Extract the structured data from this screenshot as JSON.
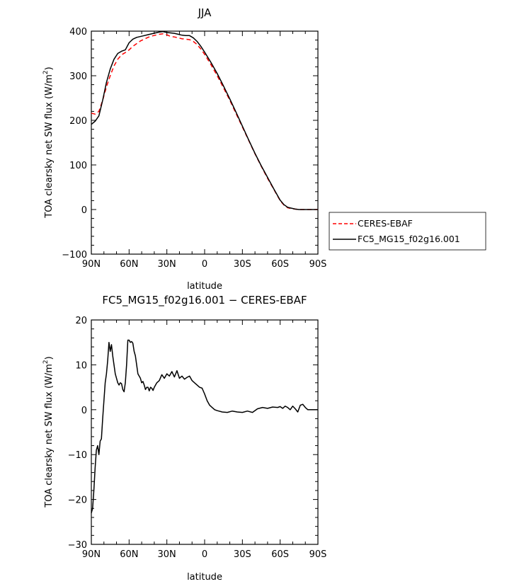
{
  "chart_data": [
    {
      "type": "line",
      "title": "JJA",
      "xlabel": "latitude",
      "ylabel": "TOA clearsky net SW flux (W/m²)",
      "ylabel_parts": [
        "TOA clearsky net SW flux (W/m",
        "2",
        ")"
      ],
      "xlim": [
        90,
        -90
      ],
      "ylim": [
        -100,
        400
      ],
      "x_ticks": [
        90,
        60,
        30,
        0,
        -30,
        -60,
        -90
      ],
      "x_tick_labels": [
        "90N",
        "60N",
        "30N",
        "0",
        "30S",
        "60S",
        "90S"
      ],
      "y_ticks": [
        -100,
        0,
        100,
        200,
        300,
        400
      ],
      "y_tick_labels": [
        "−100",
        "0",
        "100",
        "200",
        "300",
        "400"
      ],
      "legend_position": "right",
      "series": [
        {
          "name": "CERES-EBAF",
          "color": "#ff0000",
          "dashed": true,
          "x": [
            90,
            87,
            84,
            81,
            78,
            75,
            72,
            69,
            66,
            63,
            60,
            57,
            54,
            51,
            48,
            45,
            42,
            39,
            36,
            33,
            30,
            27,
            24,
            21,
            18,
            15,
            12,
            9,
            6,
            3,
            0,
            -5,
            -10,
            -15,
            -20,
            -25,
            -30,
            -35,
            -40,
            -45,
            -50,
            -55,
            -60,
            -63,
            -66,
            -69,
            -72,
            -75,
            -80,
            -85,
            -90
          ],
          "y": [
            216,
            214,
            220,
            245,
            275,
            300,
            322,
            337,
            347,
            352,
            358,
            366,
            372,
            378,
            382,
            386,
            389,
            391,
            393,
            394,
            392,
            388,
            387,
            385,
            383,
            382,
            381,
            377,
            370,
            360,
            348,
            325,
            300,
            273,
            245,
            215,
            185,
            155,
            125,
            97,
            70,
            45,
            20,
            10,
            4,
            2,
            1,
            0,
            0,
            0,
            0
          ]
        },
        {
          "name": "FC5_MG15_f02g16.001",
          "color": "#000000",
          "dashed": false,
          "x": [
            90,
            87,
            84,
            81,
            78,
            75,
            72,
            69,
            66,
            63,
            60,
            57,
            54,
            51,
            48,
            45,
            42,
            39,
            36,
            33,
            30,
            27,
            24,
            21,
            18,
            15,
            12,
            9,
            6,
            3,
            0,
            -5,
            -10,
            -15,
            -20,
            -25,
            -30,
            -35,
            -40,
            -45,
            -50,
            -55,
            -60,
            -63,
            -66,
            -69,
            -72,
            -75,
            -80,
            -85,
            -90
          ],
          "y": [
            191,
            198,
            210,
            245,
            285,
            315,
            337,
            350,
            355,
            358,
            374,
            382,
            386,
            388,
            390,
            392,
            394,
            396,
            398,
            399,
            397,
            396,
            395,
            393,
            391,
            390,
            390,
            385,
            377,
            366,
            353,
            330,
            305,
            277,
            248,
            218,
            187,
            156,
            126,
            98,
            72,
            46,
            21,
            11,
            5,
            3,
            1,
            0,
            0,
            0,
            0
          ]
        }
      ]
    },
    {
      "type": "line",
      "title": "FC5_MG15_f02g16.001 − CERES-EBAF",
      "xlabel": "latitude",
      "ylabel": "TOA clearsky net SW flux (W/m²)",
      "ylabel_parts": [
        "TOA clearsky net SW flux (W/m",
        "2",
        ")"
      ],
      "xlim": [
        90,
        -90
      ],
      "ylim": [
        -30,
        20
      ],
      "x_ticks": [
        90,
        60,
        30,
        0,
        -30,
        -60,
        -90
      ],
      "x_tick_labels": [
        "90N",
        "60N",
        "30N",
        "0",
        "30S",
        "60S",
        "90S"
      ],
      "y_ticks": [
        -30,
        -20,
        -10,
        0,
        10,
        20
      ],
      "y_tick_labels": [
        "−30",
        "−20",
        "−10",
        "0",
        "10",
        "20"
      ],
      "series": [
        {
          "color": "#000000",
          "dashed": false,
          "x": [
            90,
            89,
            88,
            87,
            86,
            85,
            84,
            83,
            82,
            81,
            80,
            79,
            78,
            77,
            76,
            75,
            74,
            73,
            72,
            71,
            70,
            69,
            68,
            67,
            66,
            65,
            64,
            63,
            62,
            61,
            60,
            59,
            58,
            57,
            56,
            55,
            54,
            53,
            52,
            51,
            50,
            49,
            48,
            47,
            46,
            45,
            44,
            43,
            42,
            41,
            40,
            38,
            36,
            34,
            32,
            30,
            28,
            26,
            24,
            22,
            20,
            18,
            16,
            14,
            12,
            10,
            8,
            6,
            4,
            2,
            0,
            -2,
            -4,
            -6,
            -8,
            -10,
            -14,
            -18,
            -22,
            -26,
            -30,
            -34,
            -38,
            -42,
            -46,
            -50,
            -54,
            -58,
            -60,
            -62,
            -64,
            -66,
            -68,
            -70,
            -72,
            -74,
            -76,
            -78,
            -80,
            -82,
            -85,
            -90
          ],
          "y": [
            -23,
            -22,
            -18,
            -13,
            -9,
            -8,
            -10,
            -7,
            -6.5,
            -2,
            2,
            6,
            8,
            11,
            15,
            13,
            14.5,
            12,
            10,
            8,
            7,
            6,
            5.5,
            6,
            5.8,
            4.5,
            4,
            6,
            10,
            15.5,
            15.5,
            15,
            15.2,
            14.8,
            13,
            12,
            10,
            8,
            7.5,
            7,
            6,
            6.3,
            5.5,
            4.5,
            5,
            5,
            4.2,
            5,
            4.8,
            4.3,
            5,
            6,
            6.5,
            7.8,
            7,
            8,
            7.5,
            8.5,
            7.3,
            8.7,
            7,
            7.5,
            6.8,
            7.2,
            7.5,
            6.5,
            6,
            5.5,
            5,
            4.8,
            3.5,
            2,
            1,
            0.5,
            0,
            -0.2,
            -0.5,
            -0.6,
            -0.3,
            -0.5,
            -0.6,
            -0.3,
            -0.6,
            0.2,
            0.5,
            0.3,
            0.6,
            0.5,
            0.7,
            0.3,
            0.8,
            0.5,
            0,
            0.8,
            0.2,
            -0.5,
            1,
            1.2,
            0.5,
            0,
            0,
            0
          ]
        }
      ]
    }
  ]
}
